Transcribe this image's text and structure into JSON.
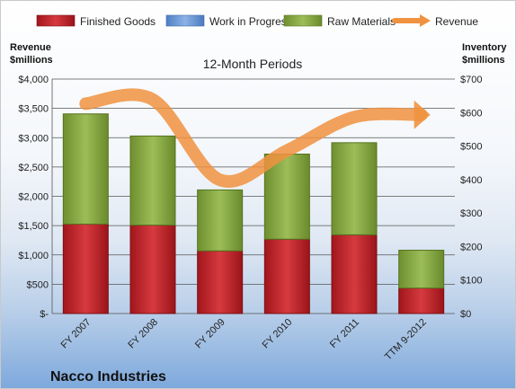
{
  "chart_data": {
    "type": "bar",
    "title": "12-Month Periods",
    "company": "Nacco Industries",
    "categories": [
      "FY 2007",
      "FY 2008",
      "FY 2009",
      "FY 2010",
      "FY 2011",
      "TTM 9-2012"
    ],
    "left_axis": {
      "title_line1": "Revenue",
      "title_line2": "$millions",
      "ylim": [
        0,
        4000
      ],
      "tick_labels": [
        "$-",
        "$500",
        "$1,000",
        "$1,500",
        "$2,000",
        "$2,500",
        "$3,000",
        "$3,500",
        "$4,000"
      ]
    },
    "right_axis": {
      "title_line1": "Inventory",
      "title_line2": "$millions",
      "ylim": [
        0,
        700
      ],
      "tick_labels": [
        "$0",
        "$100",
        "$200",
        "$300",
        "$400",
        "$500",
        "$600",
        "$700"
      ]
    },
    "grid": true,
    "legend_position": "top",
    "series": [
      {
        "name": "Finished Goods",
        "axis": "right",
        "color": "#c0262d",
        "values": [
          267,
          264,
          187,
          222,
          235,
          76
        ]
      },
      {
        "name": "Work in Progress",
        "axis": "right",
        "color": "#6f9bd6",
        "values": [
          0,
          0,
          0,
          0,
          0,
          0
        ]
      },
      {
        "name": "Raw Materials",
        "axis": "right",
        "color": "#8fb04a",
        "values": [
          329,
          266,
          182,
          254,
          275,
          113
        ]
      },
      {
        "name": "Revenue",
        "axis": "left",
        "type": "line",
        "color": "#f0923f",
        "values": [
          3580,
          3650,
          2280,
          2780,
          3350,
          3390
        ]
      }
    ]
  }
}
